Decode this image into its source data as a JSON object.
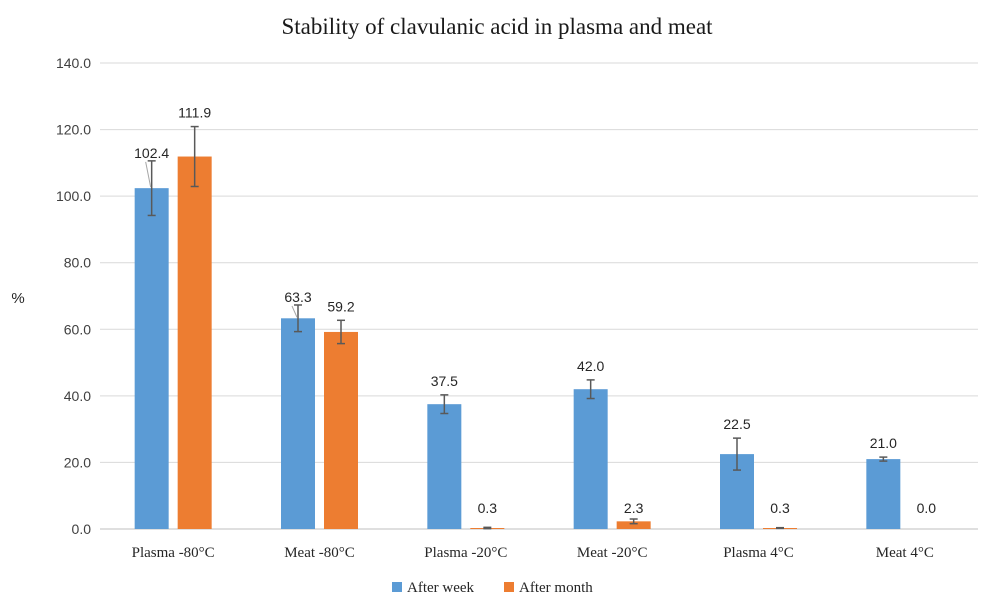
{
  "chart_data": {
    "type": "bar",
    "title": "Stability of clavulanic acid in plasma and meat",
    "ylabel": "%",
    "xlabel": "",
    "ylim": [
      0,
      140
    ],
    "yticks": [
      "0.0",
      "20.0",
      "40.0",
      "60.0",
      "80.0",
      "100.0",
      "120.0",
      "140.0"
    ],
    "grid": true,
    "legend_position": "bottom",
    "categories": [
      "Plasma -80°C",
      "Meat -80°C",
      "Plasma -20°C",
      "Meat -20°C",
      "Plasma 4°C",
      "Meat 4°C"
    ],
    "series": [
      {
        "name": "After week",
        "color": "#5b9bd5",
        "values": [
          102.4,
          63.3,
          37.5,
          42.0,
          22.5,
          21.0
        ],
        "labels": [
          "102.4",
          "63.3",
          "37.5",
          "42.0",
          "22.5",
          "21.0"
        ],
        "error": [
          8.2,
          4.0,
          2.8,
          2.8,
          4.8,
          0.6
        ]
      },
      {
        "name": "After month",
        "color": "#ed7d31",
        "values": [
          111.9,
          59.2,
          0.3,
          2.3,
          0.3,
          0.0
        ],
        "labels": [
          "111.9",
          "59.2",
          "0.3",
          "2.3",
          "0.3",
          "0.0"
        ],
        "error": [
          9.0,
          3.5,
          0.2,
          0.7,
          0.1,
          0.0
        ]
      }
    ]
  }
}
